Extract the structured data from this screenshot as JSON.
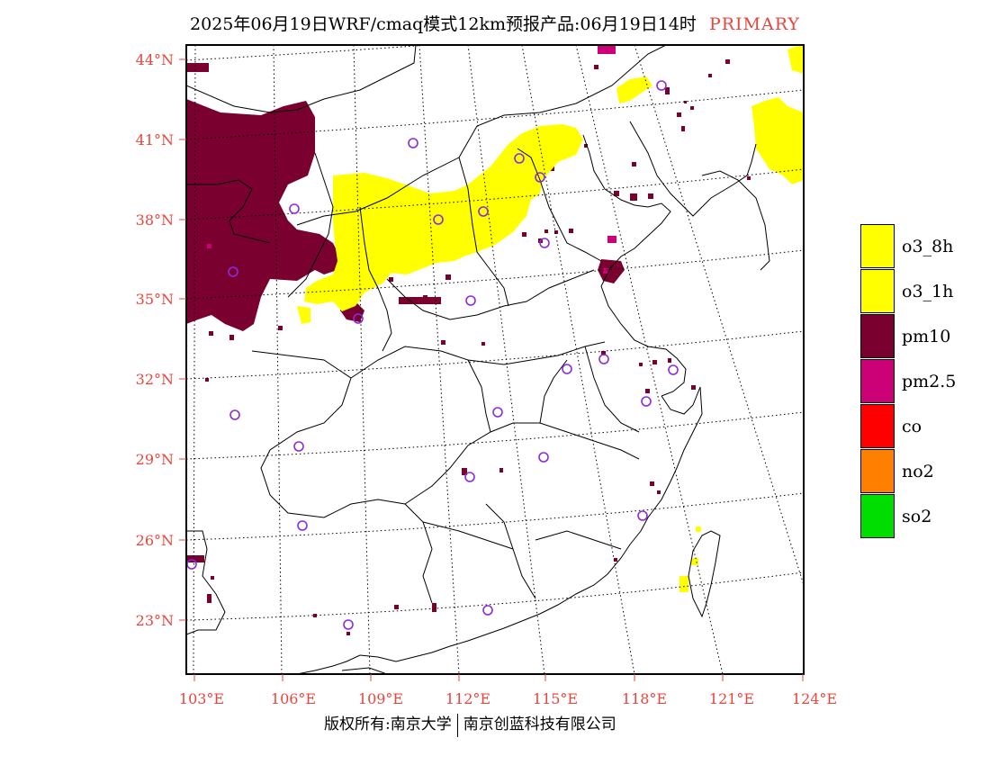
{
  "title": {
    "text": "2025年06月19日WRF/cmaq模式12km预报产品:06月19日14时",
    "tag": "PRIMARY",
    "tag_color": "#e8453c"
  },
  "axes": {
    "lat_labels": [
      "44°N",
      "41°N",
      "38°N",
      "35°N",
      "32°N",
      "29°N",
      "26°N",
      "23°N"
    ],
    "lon_labels": [
      "103°E",
      "106°E",
      "109°E",
      "112°E",
      "115°E",
      "118°E",
      "121°E",
      "124°E"
    ],
    "label_color": "#e8453c"
  },
  "legend": [
    {
      "label": "o3_8h",
      "color": "#ffff00"
    },
    {
      "label": "o3_1h",
      "color": "#ffff00"
    },
    {
      "label": "pm10",
      "color": "#7a0030"
    },
    {
      "label": "pm2.5",
      "color": "#cc0077"
    },
    {
      "label": "co",
      "color": "#ff0000"
    },
    {
      "label": "no2",
      "color": "#ff8000"
    },
    {
      "label": "so2",
      "color": "#00dd00"
    }
  ],
  "footer": {
    "left": "版权所有:南京大学",
    "right": "南京创蓝科技有限公司"
  },
  "colors": {
    "station_marker": "#8a2be2",
    "o3": "#ffff00",
    "pm10": "#7a0030",
    "pm25": "#cc0077"
  }
}
